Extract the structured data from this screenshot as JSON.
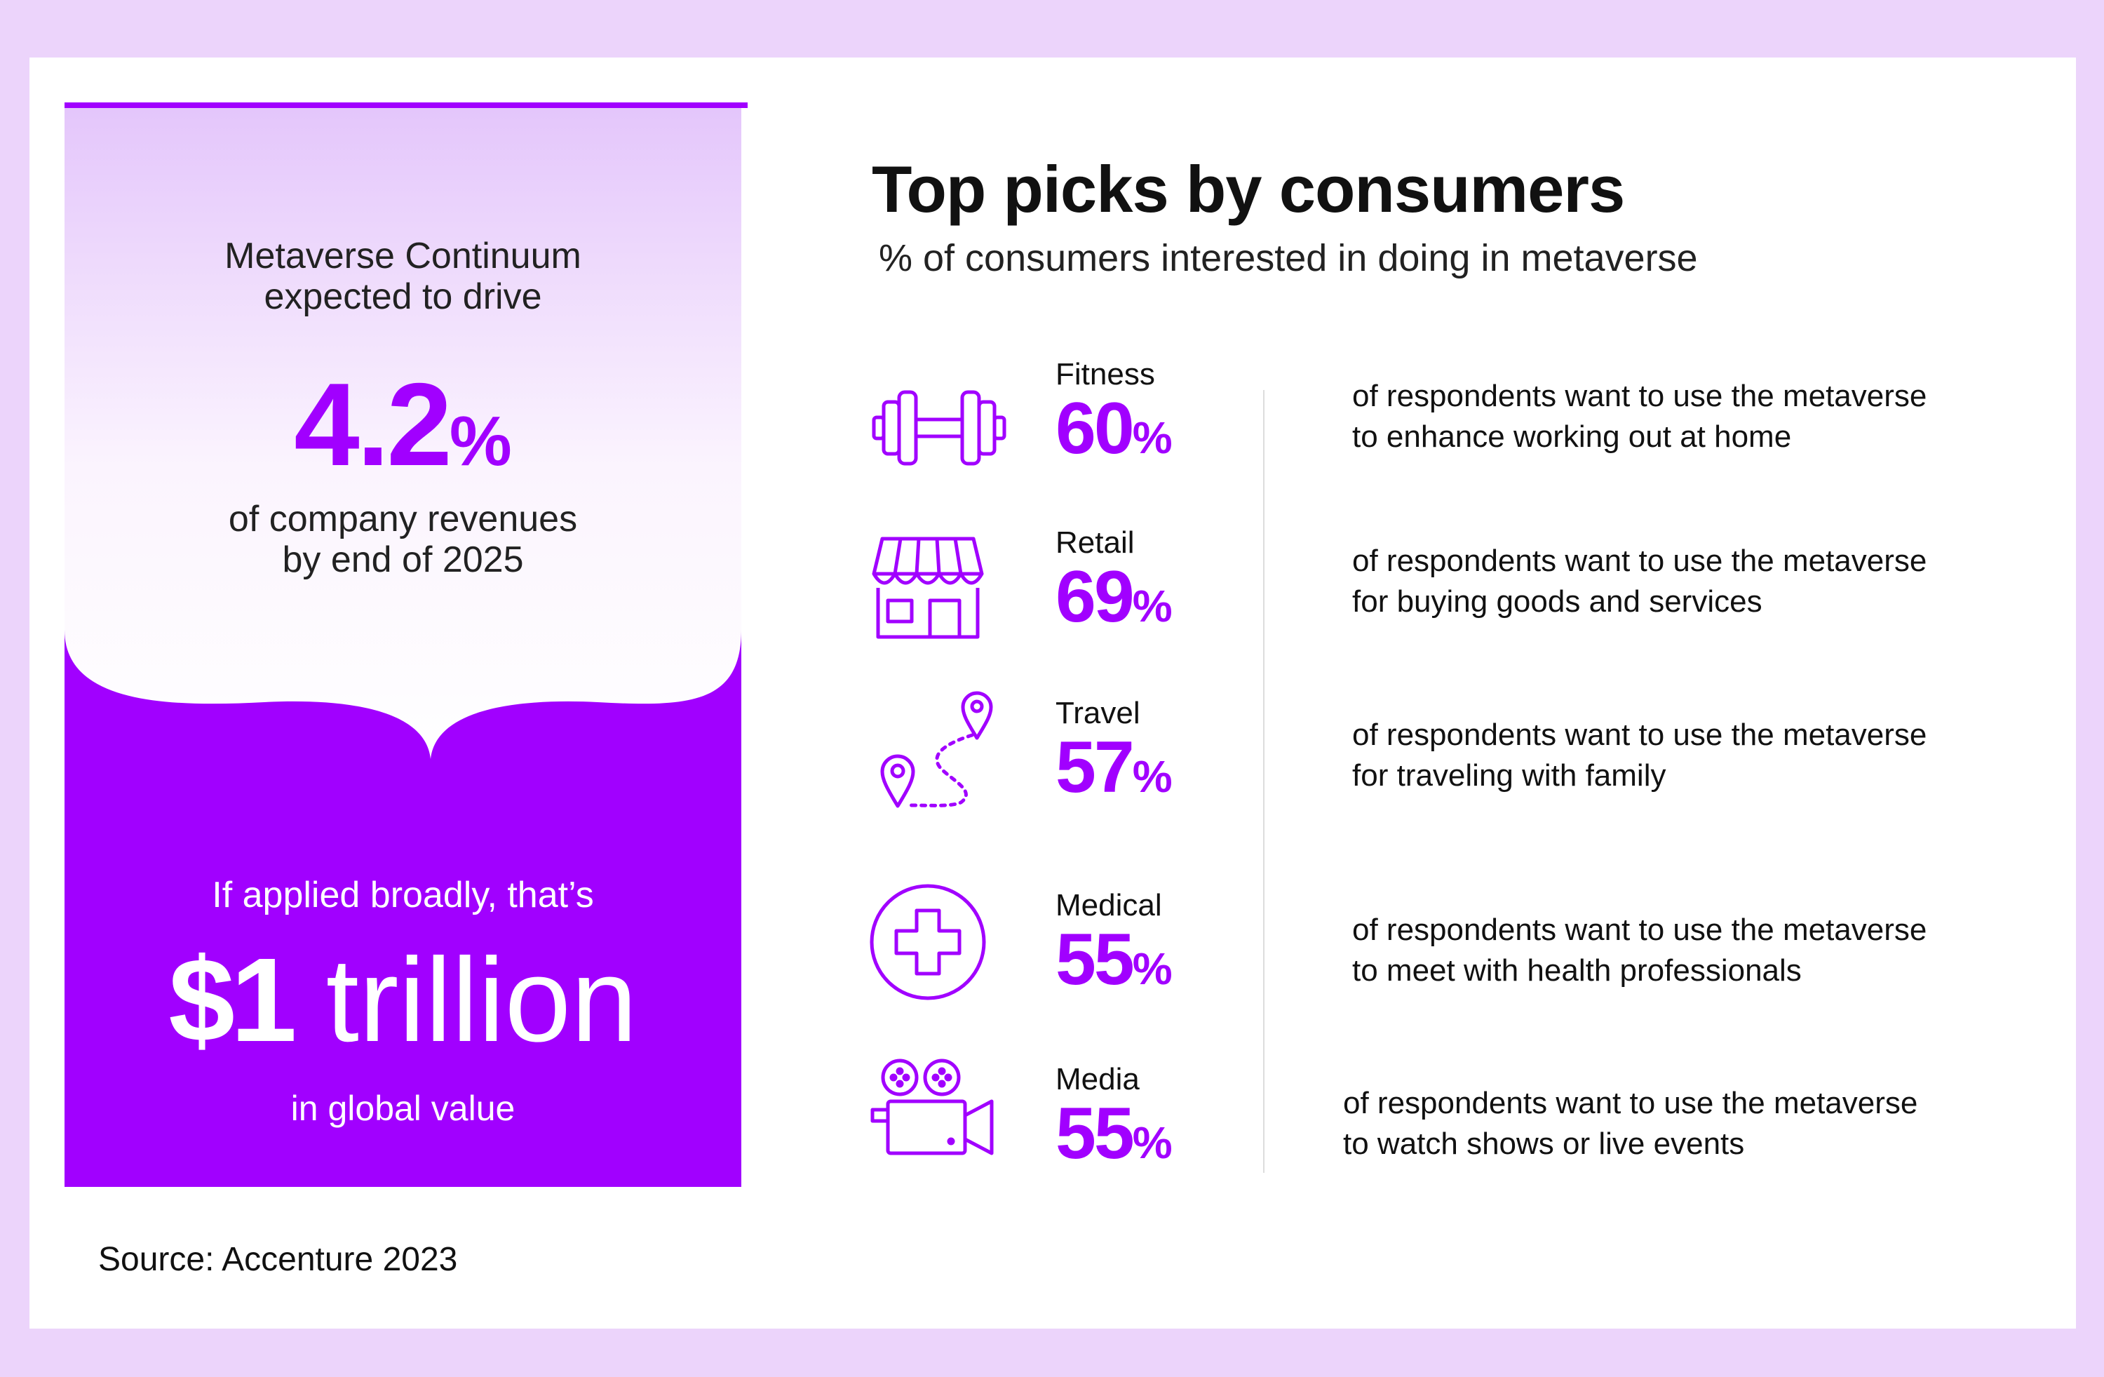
{
  "left_panel": {
    "intro_line1": "Metaverse Continuum",
    "intro_line2": "expected to drive",
    "stat_number": "4.2",
    "stat_unit": "%",
    "revenue_line1": "of company revenues",
    "revenue_line2": "by end of 2025",
    "applied_text": "If applied broadly, that’s",
    "value_amount": "$1",
    "value_word": "trillion",
    "value_caption": "in global value"
  },
  "source": "Source: Accenture 2023",
  "title": "Top picks by consumers",
  "subtitle": "% of consumers interested in doing in metaverse",
  "picks": [
    {
      "label": "Fitness",
      "number": "60",
      "unit": "%",
      "icon": "dumbbell-icon",
      "desc_line1": "of respondents want to use the metaverse",
      "desc_line2": "to enhance working out at home"
    },
    {
      "label": "Retail",
      "number": "69",
      "unit": "%",
      "icon": "storefront-icon",
      "desc_line1": "of respondents want to use the metaverse",
      "desc_line2": "for buying goods and services"
    },
    {
      "label": "Travel",
      "number": "57",
      "unit": "%",
      "icon": "route-pins-icon",
      "desc_line1": "of respondents want to use the metaverse",
      "desc_line2": "for traveling with family"
    },
    {
      "label": "Medical",
      "number": "55",
      "unit": "%",
      "icon": "medical-cross-icon",
      "desc_line1": "of respondents want to use the metaverse",
      "desc_line2": "to meet with health professionals"
    },
    {
      "label": "Media",
      "number": "55",
      "unit": "%",
      "icon": "video-camera-icon",
      "desc_line1": "of respondents want to use the metaverse",
      "desc_line2": "to watch shows or live events"
    }
  ],
  "colors": {
    "accent": "#a100ff",
    "page_background": "#ecd4fb",
    "card_background": "#ffffff"
  }
}
